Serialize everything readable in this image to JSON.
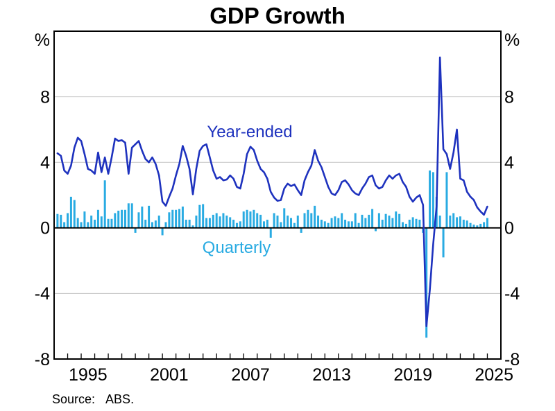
{
  "title": "GDP Growth",
  "source": {
    "label": "Source:",
    "value": "ABS."
  },
  "series_labels": {
    "line": "Year-ended",
    "bars": "Quarterly"
  },
  "colors": {
    "line": "#1E32BE",
    "bars": "#29ABE2",
    "grid": "#c4c4c4",
    "axis": "#000000",
    "background": "#ffffff"
  },
  "axis": {
    "y_unit_left": "%",
    "y_unit_right": "%",
    "y_ticks": [
      8,
      4,
      0,
      -4,
      -8
    ],
    "y_gridline_values": [
      8,
      4,
      -4
    ],
    "x_tick_years_labeled": [
      1995,
      2001,
      2007,
      2013,
      2019,
      2025
    ],
    "x_minor_tick_step_years": 1
  },
  "chart_data": {
    "type": "bar+line combo (quarterly time series)",
    "title": "GDP Growth",
    "ylabel": "%",
    "ylim": [
      -8,
      12
    ],
    "x_range_years": [
      1993,
      2026
    ],
    "frequency": "quarterly",
    "start_quarter": "1993:Q1",
    "end_quarter": "2024:Q4",
    "grid": "horizontal gridlines at -4, 4, 8; solid black zero line",
    "legend_position": "in-plot text labels",
    "series": [
      {
        "name": "Year-ended",
        "type": "line",
        "color": "#1E32BE",
        "values": [
          4.55,
          4.4,
          3.5,
          3.3,
          3.8,
          4.9,
          5.5,
          5.3,
          4.5,
          3.6,
          3.5,
          3.3,
          4.6,
          3.4,
          4.3,
          3.3,
          4.3,
          5.45,
          5.3,
          5.35,
          5.2,
          3.3,
          4.9,
          5.1,
          5.3,
          4.7,
          4.2,
          4.0,
          4.3,
          3.9,
          3.2,
          1.6,
          1.35,
          1.9,
          2.4,
          3.2,
          3.9,
          5.0,
          4.4,
          3.6,
          2.05,
          3.6,
          4.7,
          5.0,
          5.1,
          4.3,
          3.5,
          3.0,
          3.1,
          2.9,
          2.95,
          3.2,
          3.0,
          2.5,
          2.4,
          3.3,
          4.5,
          4.95,
          4.75,
          4.1,
          3.6,
          3.4,
          3.0,
          2.2,
          1.85,
          1.65,
          1.7,
          2.4,
          2.7,
          2.55,
          2.65,
          2.3,
          2.0,
          2.9,
          3.4,
          3.8,
          4.75,
          4.1,
          3.7,
          3.1,
          2.5,
          2.1,
          2.0,
          2.3,
          2.8,
          2.9,
          2.65,
          2.3,
          2.1,
          2.0,
          2.4,
          2.7,
          3.1,
          3.2,
          2.6,
          2.4,
          2.5,
          2.9,
          3.2,
          3.0,
          3.2,
          3.3,
          2.8,
          2.5,
          1.9,
          1.6,
          1.85,
          2.0,
          1.4,
          -6.0,
          -3.8,
          -1.0,
          1.3,
          10.4,
          4.8,
          4.5,
          3.6,
          4.6,
          6.0,
          3.0,
          2.9,
          2.2,
          1.9,
          1.7,
          1.25,
          1.0,
          0.8,
          1.3
        ]
      },
      {
        "name": "Quarterly",
        "type": "bar",
        "color": "#29ABE2",
        "values": [
          0.85,
          0.8,
          0.35,
          0.9,
          1.9,
          1.7,
          0.6,
          0.35,
          1.0,
          0.35,
          0.75,
          0.5,
          1.1,
          0.7,
          2.9,
          0.55,
          0.55,
          0.9,
          1.05,
          1.1,
          1.1,
          1.5,
          1.5,
          -0.3,
          0.95,
          1.3,
          0.5,
          1.35,
          0.35,
          0.45,
          0.75,
          -0.45,
          0.35,
          0.95,
          1.1,
          1.1,
          1.15,
          1.3,
          0.5,
          0.5,
          0.15,
          0.75,
          1.4,
          1.45,
          0.6,
          0.6,
          0.8,
          0.9,
          0.7,
          0.9,
          0.75,
          0.65,
          0.5,
          0.3,
          0.4,
          1.0,
          1.1,
          1.0,
          1.1,
          0.9,
          0.8,
          0.4,
          0.5,
          -0.6,
          0.9,
          0.75,
          0.35,
          1.2,
          0.75,
          0.6,
          0.3,
          0.75,
          -0.3,
          0.9,
          1.1,
          0.9,
          1.35,
          0.75,
          0.5,
          0.4,
          0.3,
          0.6,
          0.7,
          0.6,
          0.9,
          0.5,
          0.4,
          0.4,
          0.9,
          0.3,
          0.8,
          0.6,
          0.8,
          1.15,
          -0.2,
          0.9,
          0.5,
          0.85,
          0.75,
          0.6,
          1.0,
          0.85,
          0.35,
          0.25,
          0.5,
          0.65,
          0.55,
          0.5,
          -0.3,
          -6.7,
          3.5,
          3.4,
          1.9,
          0.75,
          -1.8,
          3.4,
          0.75,
          0.9,
          0.65,
          0.7,
          0.5,
          0.45,
          0.3,
          0.2,
          0.15,
          0.25,
          0.35,
          0.6
        ]
      }
    ]
  }
}
